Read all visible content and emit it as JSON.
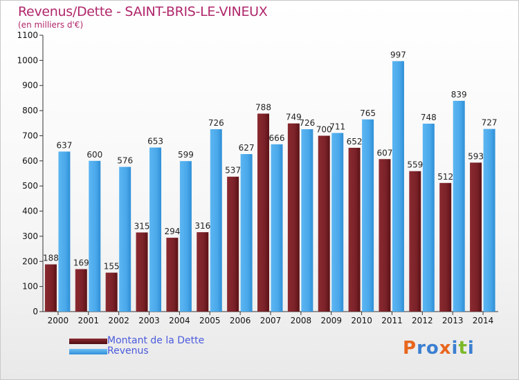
{
  "header": {
    "title": "Revenus/Dette - SAINT-BRIS-LE-VINEUX",
    "subtitle": "(en milliers d'€)"
  },
  "legend": {
    "items": [
      {
        "label": "Montant de la Dette",
        "color": "#6b1a1f"
      },
      {
        "label": "Revenus",
        "color": "#3a9de0"
      }
    ]
  },
  "logo": {
    "text": "Proxiti",
    "colors": [
      "#e8661e",
      "#3b7fd1",
      "#3b7fd1",
      "#e8661e",
      "#3b7fd1",
      "#7cb82a",
      "#3b7fd1"
    ]
  },
  "chart_data": {
    "type": "bar",
    "title": "Revenus/Dette - SAINT-BRIS-LE-VINEUX",
    "subtitle": "(en milliers d'€)",
    "xlabel": "",
    "ylabel": "",
    "categories": [
      "2000",
      "2001",
      "2002",
      "2003",
      "2004",
      "2005",
      "2006",
      "2007",
      "2008",
      "2009",
      "2010",
      "2011",
      "2012",
      "2013",
      "2014"
    ],
    "series": [
      {
        "name": "Montant de la Dette",
        "color": "#6b1a1f",
        "values": [
          188,
          169,
          155,
          315,
          294,
          316,
          537,
          788,
          749,
          700,
          652,
          607,
          559,
          512,
          593
        ]
      },
      {
        "name": "Revenus",
        "color": "#3a9de0",
        "values": [
          637,
          600,
          576,
          653,
          599,
          726,
          627,
          666,
          726,
          711,
          765,
          997,
          748,
          839,
          727
        ]
      }
    ],
    "ylim": [
      0,
      1100
    ],
    "yticks": [
      0,
      100,
      200,
      300,
      400,
      500,
      600,
      700,
      800,
      900,
      1000,
      1100
    ],
    "grid": false,
    "legend_position": "bottom-left"
  }
}
